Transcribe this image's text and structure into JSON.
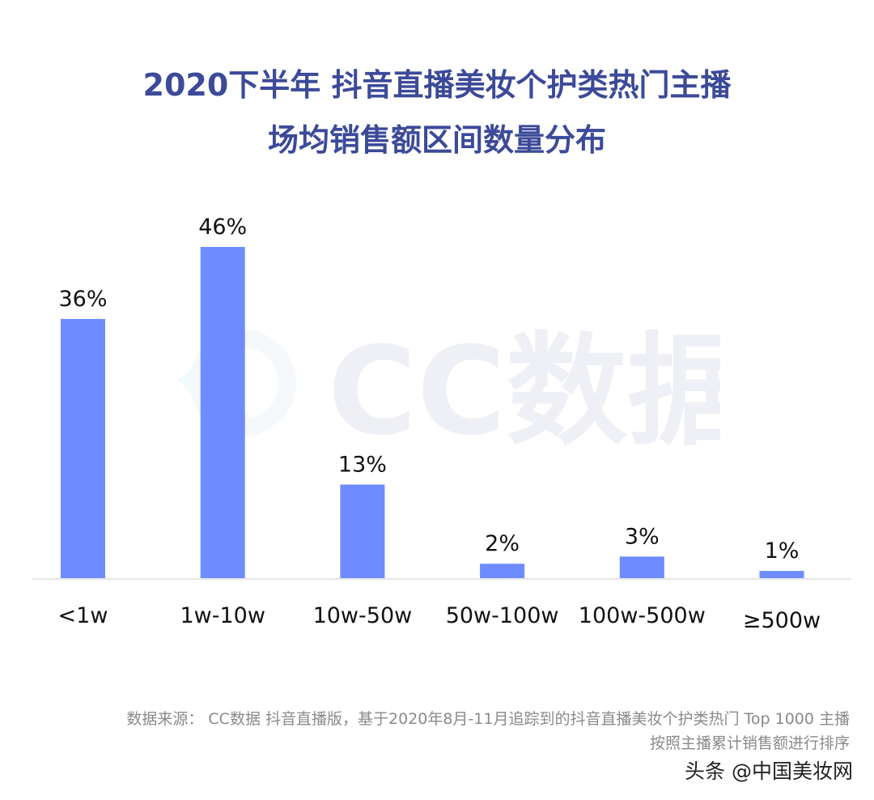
{
  "chart_data": {
    "type": "bar",
    "title": [
      "2020下半年 抖音直播美妆个护类热门主播",
      "场均销售额区间数量分布"
    ],
    "categories": [
      "<1w",
      "1w-10w",
      "10w-50w",
      "50w-100w",
      "100w-500w",
      "≥500w"
    ],
    "values": [
      36,
      46,
      13,
      2,
      3,
      1
    ],
    "data_labels": [
      "36%",
      "46%",
      "13%",
      "2%",
      "3%",
      "1%"
    ],
    "unit": "%",
    "ylim": [
      0,
      50
    ],
    "grid": false,
    "bar_color": "#6e8bff",
    "xlabel": "",
    "ylabel": ""
  },
  "watermark": "CC数据",
  "footer": {
    "source_line1": "数据来源： CC数据 抖音直播版，基于2020年8月-11月追踪到的抖音直播美妆个护类热门 Top 1000 主播",
    "source_line2": "按照主播累计销售额进行排序",
    "credit": "头条 @中国美妆网"
  },
  "colors": {
    "title": "#3c4a99",
    "bar": "#6e8bff",
    "footer_text": "#8a8a8a"
  }
}
